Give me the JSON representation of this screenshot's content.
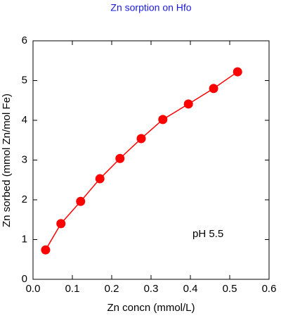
{
  "chart_data": {
    "type": "scatter",
    "title": "Zn sorption on Hfo",
    "x_label": "Zn concn (mmol/L)",
    "y_label": "Zn sorbed (mmol Zn/mol Fe)",
    "annotation": "pH 5.5",
    "xlim": [
      0,
      0.6
    ],
    "xticks": [
      {
        "value": 0,
        "label": "0.0"
      },
      0.1,
      0.2,
      0.3,
      0.4,
      0.5,
      0.6
    ],
    "ylim": [
      0,
      6
    ],
    "yticks": [
      0,
      1,
      2,
      3,
      4,
      5,
      6
    ],
    "series": [
      {
        "color": "#ff0000",
        "x": [
          0.032,
          0.071,
          0.121,
          0.17,
          0.221,
          0.275,
          0.33,
          0.395,
          0.459,
          0.52
        ],
        "values": [
          0.74,
          1.4,
          1.96,
          2.53,
          3.04,
          3.54,
          4.02,
          4.41,
          4.8,
          5.22
        ]
      }
    ]
  }
}
